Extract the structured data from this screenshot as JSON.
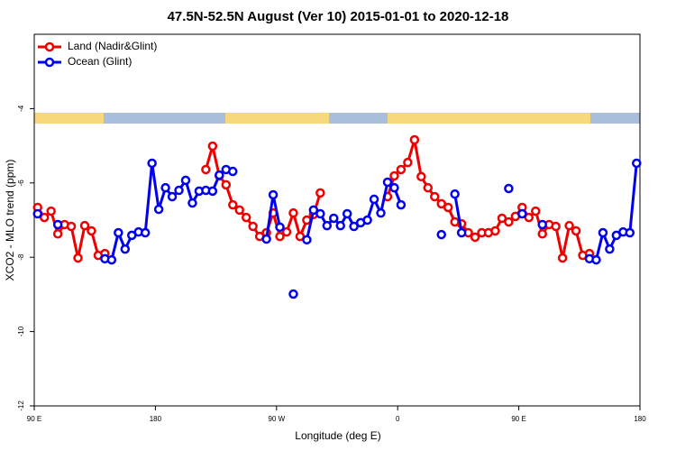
{
  "chart_data": {
    "type": "line",
    "title": "47.5N-52.5N August (Ver 10)   2015-01-01 to 2020-12-18",
    "xlabel": "Longitude (deg E)",
    "ylabel": "XCO2 - MLO trend (ppm)",
    "xlim": [
      90,
      540
    ],
    "xticks": [
      {
        "value": 90,
        "label": "90 E"
      },
      {
        "value": 180,
        "label": "180"
      },
      {
        "value": 270,
        "label": "90 W"
      },
      {
        "value": 360,
        "label": "0"
      },
      {
        "value": 450,
        "label": "90 E"
      },
      {
        "value": 540,
        "label": "180"
      }
    ],
    "ylim": [
      -12,
      -2
    ],
    "yticks": [
      -12,
      -10,
      -8,
      -6,
      -4
    ],
    "legend": "top-left",
    "series": [
      {
        "name": "Land (Nadir&Glint)",
        "color": "#ee0000",
        "x": [
          92.5,
          97.5,
          102.5,
          107.5,
          112.5,
          117.5,
          122.5,
          127.5,
          132.5,
          137.5,
          142.5,
          null,
          217.5,
          222.5,
          227.5,
          232.5,
          237.5,
          242.5,
          247.5,
          252.5,
          257.5,
          262.5,
          267.5,
          272.5,
          277.5,
          282.5,
          287.5,
          292.5,
          297.5,
          302.5,
          null,
          352.5,
          357.5,
          362.5,
          367.5,
          372.5,
          377.5,
          382.5,
          387.5,
          392.5,
          397.5,
          402.5,
          407.5,
          412.5,
          417.5,
          422.5,
          427.5,
          432.5,
          437.5,
          442.5,
          447.5,
          452.5,
          457.5,
          462.5,
          467.5,
          472.5,
          477.5,
          482.5,
          487.5,
          492.5,
          497.5,
          502.5
        ],
        "values": [
          -6.66,
          -6.93,
          -6.76,
          -7.37,
          -7.12,
          -7.17,
          -8.02,
          -7.15,
          -7.29,
          -7.95,
          -7.9,
          null,
          -5.64,
          -5.01,
          -5.81,
          -6.05,
          -6.59,
          -6.73,
          -6.93,
          -7.17,
          -7.44,
          -7.34,
          -6.81,
          -7.44,
          -7.32,
          -6.81,
          -7.44,
          -7.0,
          -6.85,
          -6.27,
          null,
          -6.37,
          -5.81,
          -5.64,
          -5.45,
          -4.84,
          -5.83,
          -6.13,
          -6.37,
          -6.56,
          -6.66,
          -7.05,
          -7.1,
          -7.34,
          -7.46,
          -7.34,
          -7.34,
          -7.29,
          -6.95,
          -7.05,
          -6.9,
          -6.66,
          -6.93,
          -6.76,
          -7.37,
          -7.12,
          -7.17,
          -8.02,
          -7.15,
          -7.29,
          -7.95,
          -7.9
        ]
      },
      {
        "name": "Ocean (Glint)",
        "color": "#0000ee",
        "x": [
          92.5,
          null,
          107.5,
          null,
          142.5,
          147.5,
          152.5,
          157.5,
          162.5,
          167.5,
          172.5,
          177.5,
          182.5,
          187.5,
          192.5,
          197.5,
          202.5,
          207.5,
          212.5,
          217.5,
          222.5,
          227.5,
          232.5,
          237.5,
          null,
          262.5,
          267.5,
          272.5,
          null,
          282.5,
          null,
          292.5,
          297.5,
          302.5,
          307.5,
          312.5,
          317.5,
          322.5,
          327.5,
          332.5,
          337.5,
          342.5,
          347.5,
          352.5,
          357.5,
          362.5,
          null,
          392.5,
          null,
          402.5,
          407.5,
          null,
          442.5,
          null,
          452.5,
          null,
          467.5,
          null,
          502.5,
          507.5,
          512.5,
          517.5,
          522.5,
          527.5,
          532.5,
          537.5
        ],
        "values": [
          -6.83,
          null,
          -7.12,
          null,
          -8.04,
          -8.07,
          -7.34,
          -7.78,
          -7.41,
          -7.32,
          -7.34,
          -5.47,
          -6.71,
          -6.13,
          -6.37,
          -6.2,
          -5.93,
          -6.54,
          -6.22,
          -6.2,
          -6.22,
          -5.79,
          -5.64,
          -5.69,
          null,
          -7.51,
          -6.32,
          -7.19,
          null,
          -8.99,
          null,
          -7.53,
          -6.73,
          -6.83,
          -7.15,
          -6.95,
          -7.15,
          -6.83,
          -7.17,
          -7.07,
          -7.0,
          -6.44,
          -6.81,
          -5.98,
          -6.13,
          -6.59,
          null,
          -7.39,
          null,
          -6.3,
          -7.34,
          null,
          -6.15,
          null,
          -6.83,
          null,
          -7.12,
          null,
          -8.04,
          -8.07,
          -7.34,
          -7.78,
          -7.41,
          -7.32,
          -7.34,
          -5.47
        ]
      }
    ]
  }
}
